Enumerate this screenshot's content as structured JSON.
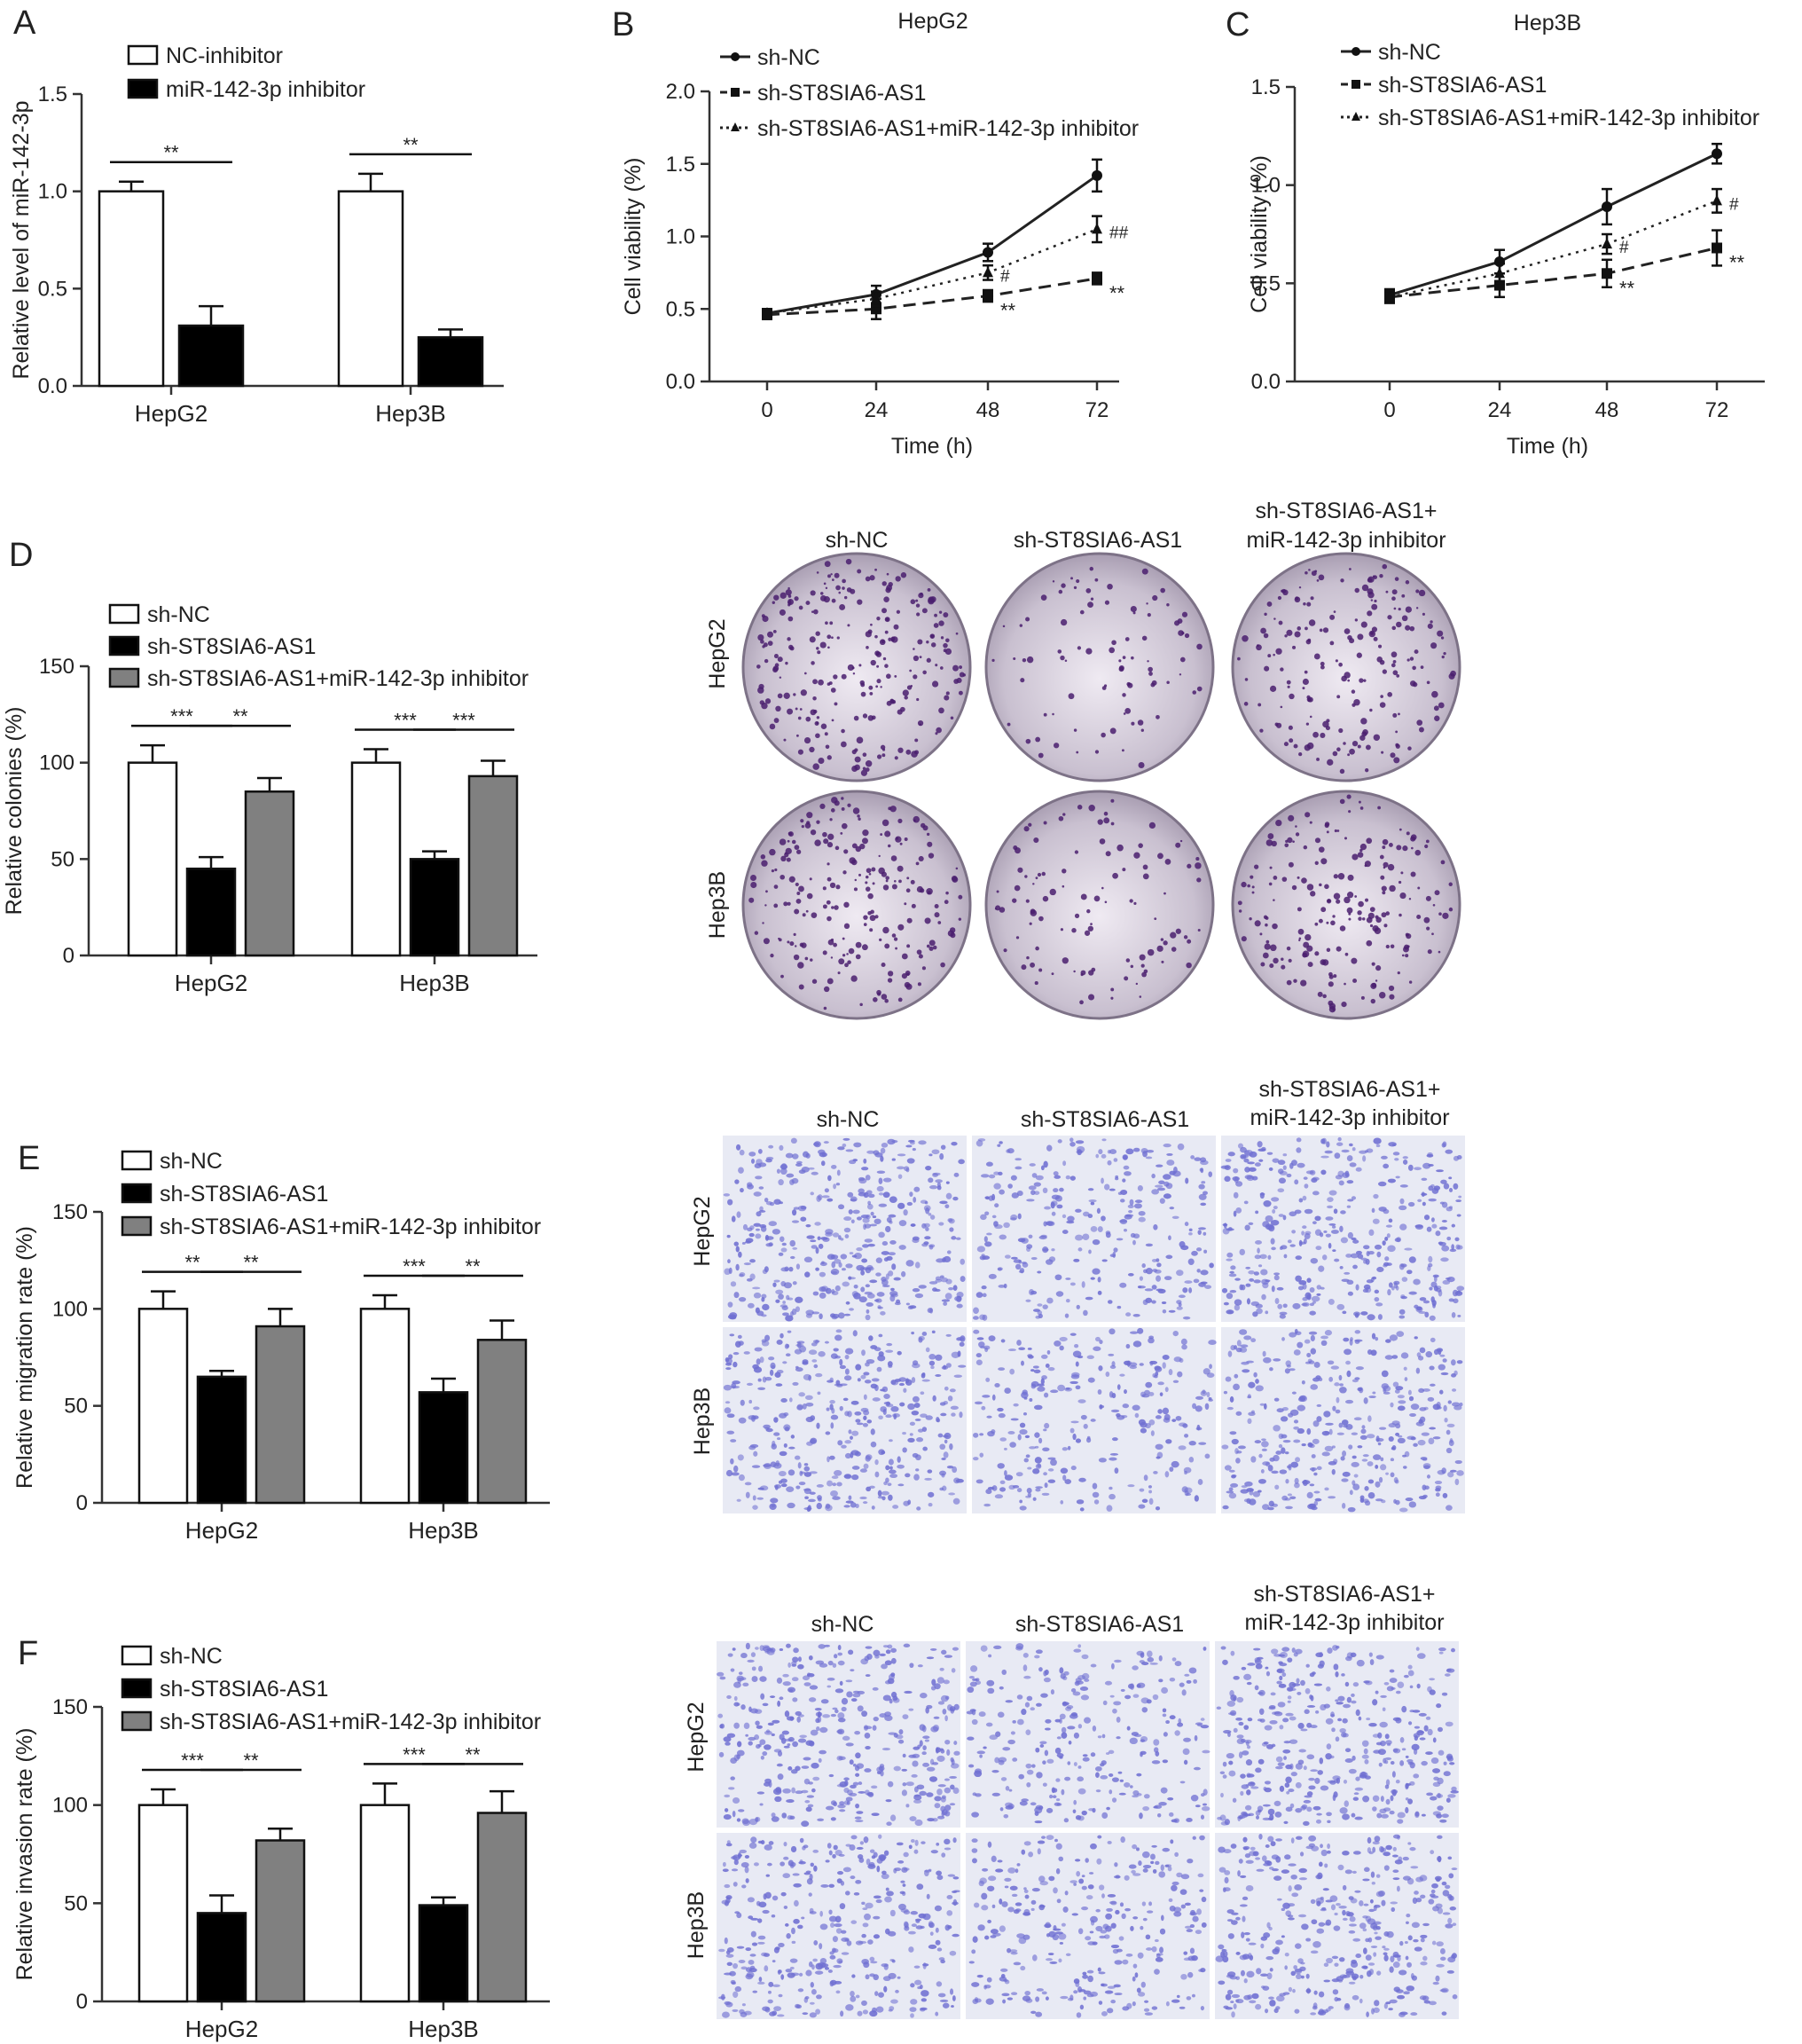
{
  "colors": {
    "bar_nc_inhibitor": "#ffffff",
    "bar_mir_inhibitor": "#000000",
    "bar_sh_nc": "#ffffff",
    "bar_sh_as1": "#000000",
    "bar_combo": "#808080",
    "colony_purple": "#4a1f6e",
    "plate_bg": "#cfc8d4",
    "transwell_bg": "#e8eaf4",
    "transwell_cell": "#6f6fd2",
    "ink": "#222222"
  },
  "panels": {
    "A": "A",
    "B": "B",
    "C": "C",
    "D": "D",
    "E": "E",
    "F": "F"
  },
  "images": {
    "D": {
      "columns": [
        "sh-NC",
        "sh-ST8SIA6-AS1",
        "sh-ST8SIA6-AS1+",
        "miR-142-3p inhibitor"
      ],
      "rows": [
        "HepG2",
        "Hep3B"
      ]
    },
    "E": {
      "columns": [
        "sh-NC",
        "sh-ST8SIA6-AS1",
        "sh-ST8SIA6-AS1+",
        "miR-142-3p inhibitor"
      ],
      "rows": [
        "HepG2",
        "Hep3B"
      ]
    },
    "F": {
      "columns": [
        "sh-NC",
        "sh-ST8SIA6-AS1",
        "sh-ST8SIA6-AS1+",
        "miR-142-3p inhibitor"
      ],
      "rows": [
        "HepG2",
        "Hep3B"
      ]
    }
  },
  "chart_data": [
    {
      "id": "A",
      "type": "bar",
      "title": "",
      "ylabel": "Relative level of miR-142-3p",
      "xlabel": "",
      "ylim": [
        0,
        1.5
      ],
      "yticks": [
        "0.0",
        "0.5",
        "1.0",
        "1.5"
      ],
      "categories": [
        "HepG2",
        "Hep3B"
      ],
      "legend": [
        "NC-inhibitor",
        "miR-142-3p inhibitor"
      ],
      "legend_position": "top-left",
      "series": [
        {
          "name": "NC-inhibitor",
          "values": [
            1.0,
            1.0
          ],
          "errors": [
            0.05,
            0.09
          ]
        },
        {
          "name": "miR-142-3p inhibitor",
          "values": [
            0.31,
            0.25
          ],
          "errors": [
            0.1,
            0.04
          ]
        }
      ],
      "significance": [
        {
          "category": "HepG2",
          "label": "**"
        },
        {
          "category": "Hep3B",
          "label": "**"
        }
      ]
    },
    {
      "id": "B",
      "type": "line",
      "title": "HepG2",
      "xlabel": "Time (h)",
      "ylabel": "Cell viability (%)",
      "x": [
        0,
        24,
        48,
        72
      ],
      "xticks": [
        "0",
        "24",
        "48",
        "72"
      ],
      "ylim": [
        0,
        2.0
      ],
      "yticks": [
        "0.0",
        "0.5",
        "1.0",
        "1.5",
        "2.0"
      ],
      "legend_position": "top-left",
      "series": [
        {
          "name": "sh-NC",
          "values": [
            0.47,
            0.6,
            0.89,
            1.42
          ],
          "errors": [
            0.03,
            0.06,
            0.06,
            0.11
          ]
        },
        {
          "name": "sh-ST8SIA6-AS1",
          "values": [
            0.46,
            0.5,
            0.59,
            0.71
          ],
          "errors": [
            0.03,
            0.07,
            0.04,
            0.04
          ]
        },
        {
          "name": "sh-ST8SIA6-AS1+miR-142-3p inhibitor",
          "values": [
            0.47,
            0.57,
            0.75,
            1.05
          ],
          "errors": [
            0.03,
            0.05,
            0.05,
            0.09
          ]
        }
      ],
      "annotations": [
        {
          "x": 48,
          "label": "**"
        },
        {
          "x": 48,
          "label": "#"
        },
        {
          "x": 72,
          "label": "**"
        },
        {
          "x": 72,
          "label": "##"
        }
      ]
    },
    {
      "id": "C",
      "type": "line",
      "title": "Hep3B",
      "xlabel": "Time (h)",
      "ylabel": "Cell viability (%)",
      "x": [
        0,
        24,
        48,
        72
      ],
      "xticks": [
        "0",
        "24",
        "48",
        "72"
      ],
      "ylim": [
        0,
        1.5
      ],
      "yticks": [
        "0.0",
        "0.5",
        "1.0",
        "1.5"
      ],
      "legend_position": "top-left",
      "series": [
        {
          "name": "sh-NC",
          "values": [
            0.44,
            0.61,
            0.89,
            1.16
          ],
          "errors": [
            0.03,
            0.06,
            0.09,
            0.05
          ]
        },
        {
          "name": "sh-ST8SIA6-AS1",
          "values": [
            0.43,
            0.49,
            0.55,
            0.68
          ],
          "errors": [
            0.03,
            0.06,
            0.07,
            0.09
          ]
        },
        {
          "name": "sh-ST8SIA6-AS1+miR-142-3p inhibitor",
          "values": [
            0.43,
            0.55,
            0.7,
            0.92
          ],
          "errors": [
            0.03,
            0.05,
            0.05,
            0.06
          ]
        }
      ],
      "annotations": [
        {
          "x": 48,
          "label": "**"
        },
        {
          "x": 48,
          "label": "#"
        },
        {
          "x": 72,
          "label": "**"
        },
        {
          "x": 72,
          "label": "#"
        }
      ]
    },
    {
      "id": "D",
      "type": "bar",
      "title": "",
      "ylabel": "Relative colonies (%)",
      "xlabel": "",
      "ylim": [
        0,
        150
      ],
      "yticks": [
        "0",
        "50",
        "100",
        "150"
      ],
      "categories": [
        "HepG2",
        "Hep3B"
      ],
      "legend_position": "top-left",
      "series": [
        {
          "name": "sh-NC",
          "values": [
            100,
            100
          ],
          "errors": [
            9,
            7
          ]
        },
        {
          "name": "sh-ST8SIA6-AS1",
          "values": [
            45,
            50
          ],
          "errors": [
            6,
            4
          ]
        },
        {
          "name": "sh-ST8SIA6-AS1+miR-142-3p inhibitor",
          "values": [
            85,
            93
          ],
          "errors": [
            7,
            8
          ]
        }
      ],
      "significance": [
        {
          "category": "HepG2",
          "label": "***"
        },
        {
          "category": "HepG2",
          "label": "**"
        },
        {
          "category": "Hep3B",
          "label": "***"
        },
        {
          "category": "Hep3B",
          "label": "***"
        }
      ]
    },
    {
      "id": "E",
      "type": "bar",
      "title": "",
      "ylabel": "Relative migration rate (%)",
      "xlabel": "",
      "ylim": [
        0,
        150
      ],
      "yticks": [
        "0",
        "50",
        "100",
        "150"
      ],
      "categories": [
        "HepG2",
        "Hep3B"
      ],
      "legend_position": "top-left",
      "series": [
        {
          "name": "sh-NC",
          "values": [
            100,
            100
          ],
          "errors": [
            9,
            7
          ]
        },
        {
          "name": "sh-ST8SIA6-AS1",
          "values": [
            65,
            57
          ],
          "errors": [
            3,
            7
          ]
        },
        {
          "name": "sh-ST8SIA6-AS1+miR-142-3p inhibitor",
          "values": [
            91,
            84
          ],
          "errors": [
            9,
            10
          ]
        }
      ],
      "significance": [
        {
          "category": "HepG2",
          "label": "**"
        },
        {
          "category": "HepG2",
          "label": "**"
        },
        {
          "category": "Hep3B",
          "label": "***"
        },
        {
          "category": "Hep3B",
          "label": "**"
        }
      ]
    },
    {
      "id": "F",
      "type": "bar",
      "title": "",
      "ylabel": "Relative invasion rate (%)",
      "xlabel": "",
      "ylim": [
        0,
        150
      ],
      "yticks": [
        "0",
        "50",
        "100",
        "150"
      ],
      "categories": [
        "HepG2",
        "Hep3B"
      ],
      "legend_position": "top-left",
      "series": [
        {
          "name": "sh-NC",
          "values": [
            100,
            100
          ],
          "errors": [
            8,
            11
          ]
        },
        {
          "name": "sh-ST8SIA6-AS1",
          "values": [
            45,
            49
          ],
          "errors": [
            9,
            4
          ]
        },
        {
          "name": "sh-ST8SIA6-AS1+miR-142-3p inhibitor",
          "values": [
            82,
            96
          ],
          "errors": [
            6,
            11
          ]
        }
      ],
      "significance": [
        {
          "category": "HepG2",
          "label": "***"
        },
        {
          "category": "HepG2",
          "label": "**"
        },
        {
          "category": "Hep3B",
          "label": "***"
        },
        {
          "category": "Hep3B",
          "label": "**"
        }
      ]
    }
  ]
}
